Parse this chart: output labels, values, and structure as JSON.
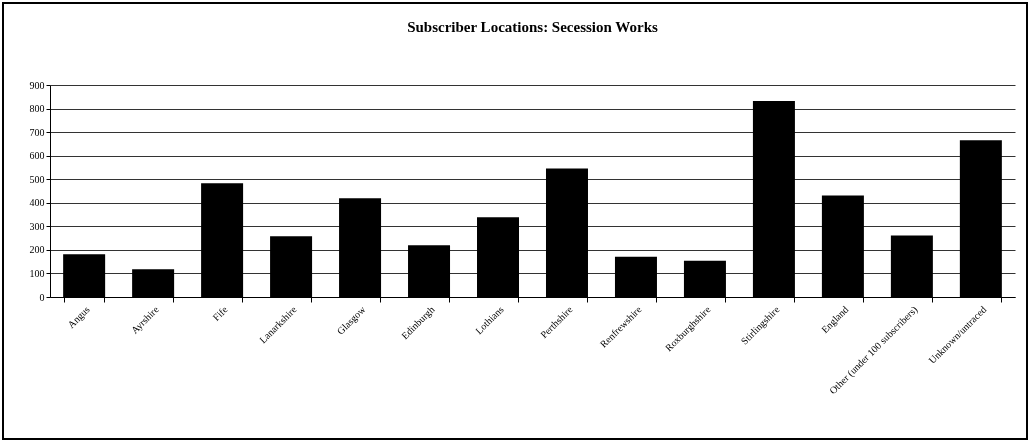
{
  "chart_data": {
    "type": "bar",
    "title": "Subscriber Locations: Secession Works",
    "categories": [
      "Angus",
      "Ayrshire",
      "Fife",
      "Lanarkshire",
      "Glasgow",
      "Edinburgh",
      "Lothians",
      "Perthshire",
      "Renfrewshire",
      "Roxburghshire",
      "Stirlingshire",
      "England",
      "Other (under 100 subscribers)",
      "Unknown/untraced"
    ],
    "values": [
      181,
      118,
      483,
      258,
      419,
      220,
      339,
      546,
      171,
      154,
      832,
      431,
      261,
      665
    ],
    "color": "#000000",
    "ylim": [
      0,
      900
    ],
    "yticks": [
      0,
      100,
      200,
      300,
      400,
      500,
      600,
      700,
      800,
      900
    ],
    "grid": "y"
  }
}
